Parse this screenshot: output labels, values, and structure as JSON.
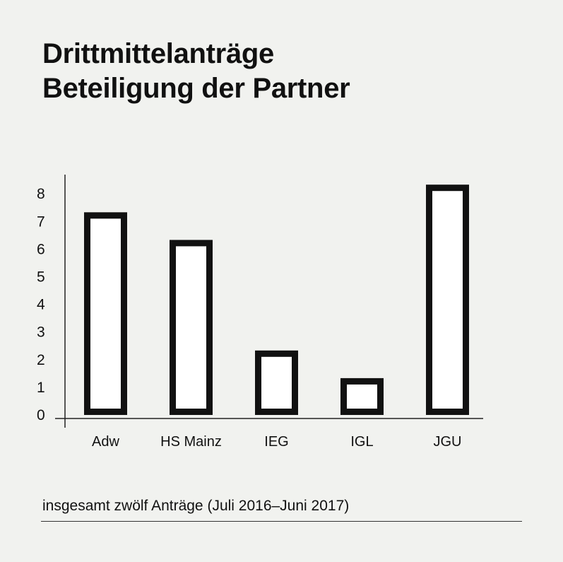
{
  "title": {
    "line1": "Drittmittelanträge",
    "line2": "Beteiligung der Partner"
  },
  "footnote": "insgesamt zwölf Anträge (Juli 2016–Juni 2017)",
  "colors": {
    "background": "#f1f2ef",
    "bar_fill": "#ffffff",
    "bar_stroke": "#111111",
    "text": "#111111"
  },
  "chart_data": {
    "type": "bar",
    "categories": [
      "Adw",
      "HS Mainz",
      "IEG",
      "IGL",
      "JGU"
    ],
    "values": [
      7,
      6,
      2,
      1,
      8
    ],
    "title": "Drittmittelanträge Beteiligung der Partner",
    "xlabel": "",
    "ylabel": "",
    "ylim": [
      0,
      8
    ],
    "yticks": [
      0,
      1,
      2,
      3,
      4,
      5,
      6,
      7,
      8
    ],
    "grid": false,
    "legend": "none"
  }
}
